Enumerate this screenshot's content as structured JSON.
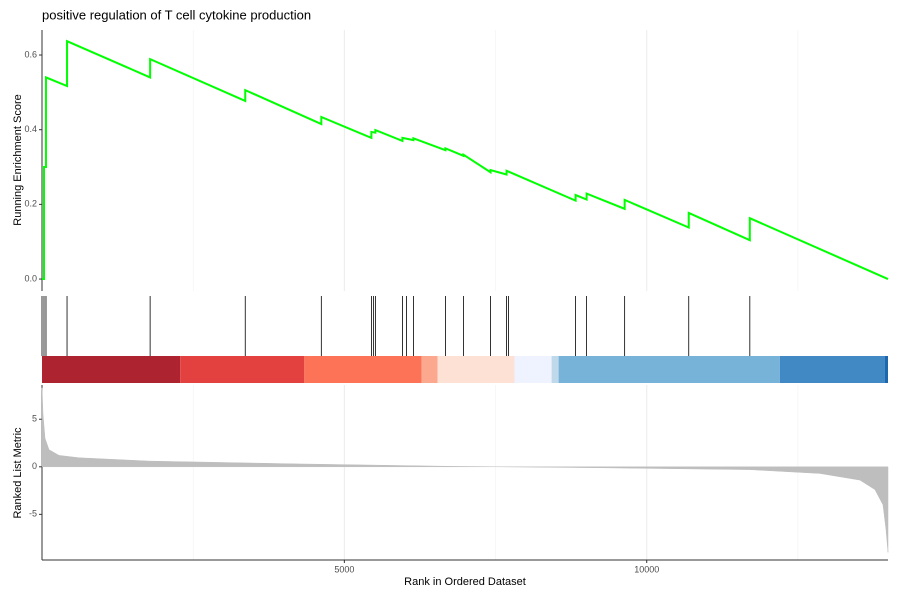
{
  "chart_data": [
    {
      "type": "line",
      "title": "positive regulation of T cell cytokine production",
      "ylabel": "Running Enrichment Score",
      "color": "#00ff00",
      "x": [
        0,
        33,
        33,
        66,
        66,
        414,
        414,
        1788,
        1788,
        3361,
        3361,
        4619,
        4619,
        5447,
        5447,
        5513,
        5513,
        5960,
        5960,
        6142,
        6142,
        6672,
        6672,
        6970,
        6970,
        7417,
        7417,
        7682,
        7682,
        8824,
        8824,
        9006,
        9006,
        9635,
        9635,
        10695,
        10695,
        11705,
        11705,
        13990
      ],
      "values": [
        0,
        0,
        0.3,
        0.3,
        0.54,
        0.517,
        0.637,
        0.54,
        0.589,
        0.477,
        0.506,
        0.415,
        0.434,
        0.378,
        0.394,
        0.392,
        0.399,
        0.37,
        0.378,
        0.372,
        0.377,
        0.345,
        0.35,
        0.33,
        0.333,
        0.286,
        0.292,
        0.28,
        0.29,
        0.21,
        0.225,
        0.213,
        0.229,
        0.188,
        0.212,
        0.138,
        0.177,
        0.104,
        0.163,
        0
      ],
      "xlim": [
        0,
        13990
      ],
      "xticks": [
        5000,
        10000
      ],
      "xminor": [
        2500,
        7500,
        12500
      ],
      "ylim": [
        -0.032,
        0.667
      ],
      "yticks": [
        {
          "value": 0,
          "label": "0.0"
        },
        0.2,
        0.4,
        0.6
      ],
      "grid": true
    },
    {
      "type": "rug",
      "xlim": [
        0,
        13990
      ],
      "hits": [
        0,
        33,
        66,
        414,
        1788,
        3361,
        4619,
        5447,
        5480,
        5513,
        5960,
        6026,
        6142,
        6672,
        6970,
        7417,
        7682,
        7715,
        8824,
        9006,
        9635,
        10695,
        11705
      ],
      "color_bar": [
        {
          "start": 0,
          "end": 2285,
          "color": "#ae2330"
        },
        {
          "start": 2285,
          "end": 4338,
          "color": "#e34040"
        },
        {
          "start": 4338,
          "end": 6275,
          "color": "#fc7357"
        },
        {
          "start": 6275,
          "end": 6540,
          "color": "#fca88f"
        },
        {
          "start": 6540,
          "end": 7815,
          "color": "#fde1d5"
        },
        {
          "start": 7815,
          "end": 8427,
          "color": "#eff3ff"
        },
        {
          "start": 8427,
          "end": 8543,
          "color": "#bfd8ea"
        },
        {
          "start": 8543,
          "end": 12202,
          "color": "#77b3d8"
        },
        {
          "start": 12202,
          "end": 13940,
          "color": "#4189c4"
        },
        {
          "start": 13940,
          "end": 13990,
          "color": "#1f67ac"
        }
      ]
    },
    {
      "type": "area",
      "ylabel": "Ranked List Metric",
      "xlabel": "Rank in Ordered Dataset",
      "color": "#bebebe",
      "x": [
        0,
        17,
        50,
        116,
        281,
        613,
        1772,
        4255,
        6738,
        9222,
        11705,
        12864,
        13526,
        13774,
        13907,
        13957,
        13990
      ],
      "values": [
        8.3,
        5.5,
        3.0,
        1.8,
        1.2,
        0.95,
        0.6,
        0.3,
        0.05,
        -0.1,
        -0.3,
        -0.7,
        -1.4,
        -2.4,
        -4.0,
        -6.6,
        -9.0
      ],
      "xlim": [
        0,
        13990
      ],
      "xticks": [
        5000,
        10000
      ],
      "xminor": [
        2500,
        7500,
        12500
      ],
      "ylim": [
        -9.8,
        8.6
      ],
      "yticks": [
        -5,
        0,
        5
      ],
      "grid": true
    }
  ]
}
